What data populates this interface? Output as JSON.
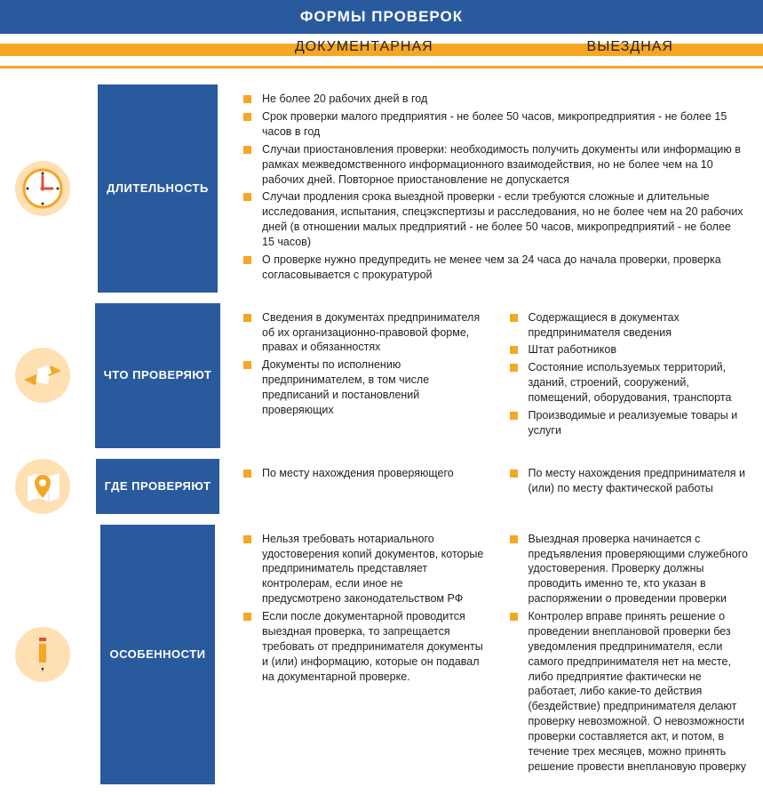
{
  "colors": {
    "header_bg": "#2a5a9e",
    "accent": "#f5a623",
    "icon_bg": "#ffe0b2",
    "icon_fg_orange": "#f5a623",
    "icon_fg_white": "#ffffff",
    "text": "#222222"
  },
  "header": {
    "title": "ФОРМЫ ПРОВЕРОК",
    "col1": "ДОКУМЕНТАРНАЯ",
    "col2": "ВЫЕЗДНАЯ"
  },
  "sections": [
    {
      "id": "duration",
      "label": "ДЛИТЕЛЬНОСТЬ",
      "label_width": 165,
      "icon": "clock",
      "full_width": true,
      "items": [
        "Не более 20 рабочих дней в год",
        "Срок проверки малого предприятия - не более 50 часов, микропредприятия - не более 15 часов в год",
        "Случаи приостановления проверки: необходимость получить документы или информацию в рамках межведомственного информационного взаимодействия, но не более чем на 10 рабочих дней. Повторное приостановление не допускается",
        "Случаи продления срока выездной проверки - если требуются сложные и длительные исследования, испытания, спецэкспертизы и расследования, но не более чем на 20 рабочих дней (в отношении малых предприятий - не более 50 часов, микропредприятий - не более 15 часов)",
        "О проверке нужно предупредить не менее чем за 24 часа до начала проверки, проверка согласовывается с прокуратурой"
      ]
    },
    {
      "id": "what",
      "label": "ЧТО ПРОВЕРЯЮТ",
      "label_width": 165,
      "icon": "hands",
      "full_width": false,
      "left": [
        "Сведения в документах предпринимателя об их организационно-правовой форме, правах и обязанностях",
        "Документы по исполнению предпринимателем, в том числе предписаний и постановлений проверяющих"
      ],
      "right": [
        "Содержащиеся в документах предпринимателя сведения",
        "Штат работников",
        "Состояние используемых территорий, зданий, строений, сооружений, помещений, оборудования, транспорта",
        "Производимые и реализуемые товары и услуги"
      ]
    },
    {
      "id": "where",
      "label": "ГДЕ ПРОВЕРЯЮТ",
      "label_width": 165,
      "icon": "map",
      "full_width": false,
      "left": [
        "По месту нахождения проверяющего"
      ],
      "right": [
        "По месту нахождения предпринимателя и (или) по месту фактической работы"
      ]
    },
    {
      "id": "features",
      "label": "ОСОБЕННОСТИ",
      "label_width": 165,
      "icon": "pencil",
      "full_width": false,
      "left": [
        "Нельзя требовать нотариального удостоверения копий документов, которые предприниматель представляет контролерам, если иное не предусмотрено законодательством РФ",
        "Если после документарной проводится выездная проверка, то запрещается требовать от предпринимателя документы и (или) информацию, которые он подавал на документарной проверке."
      ],
      "right": [
        "Выездная проверка начинается с предъявления проверяющими служебного удостоверения. Проверку должны проводить именно те, кто указан в распоряжении о проведении проверки",
        "Контролер вправе принять решение о проведении внеплановой проверки без уведомления предпринимателя, если самого предпринимателя нет на месте, либо предприятие фактически не работает, либо какие-то действия (бездействие) предпринимателя делают проверку невозможной. О невозможности проверки составляется акт, и потом, в течение трех месяцев, можно принять решение провести внеплановую проверку"
      ]
    }
  ]
}
